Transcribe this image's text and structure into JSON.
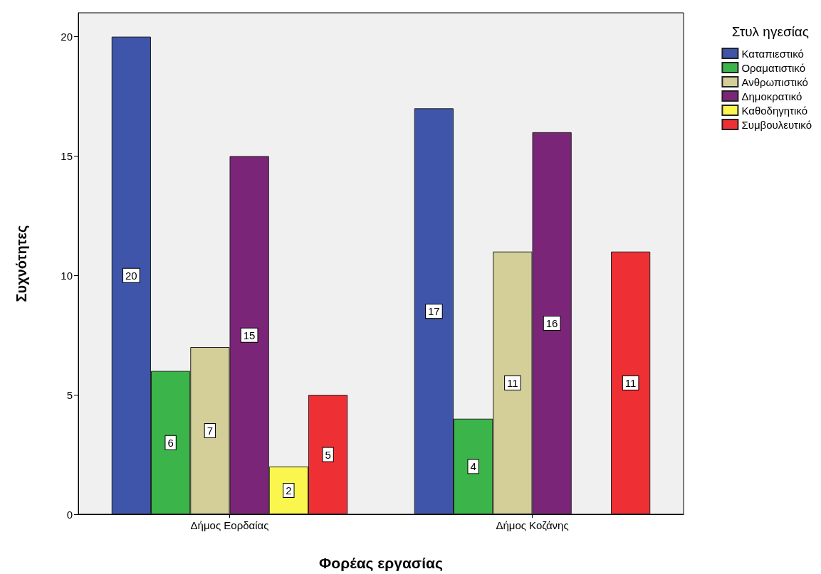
{
  "chart_data": {
    "type": "bar",
    "xlabel": "Φορέας εργασίας",
    "ylabel": "Συχνότητες",
    "legend_title": "Στυλ ηγεσίας",
    "categories": [
      "Δήμος Εορδαίας",
      "Δήμος Κοζάνης"
    ],
    "series": [
      {
        "name": "Καταπιεστικό",
        "color": "#3f55a9",
        "values": [
          20,
          17
        ]
      },
      {
        "name": "Οραματιστικό",
        "color": "#3bb54a",
        "values": [
          6,
          4
        ]
      },
      {
        "name": "Ανθρωπιστικό",
        "color": "#d4cf98",
        "values": [
          7,
          11
        ]
      },
      {
        "name": "Δημοκρατικό",
        "color": "#7b2578",
        "values": [
          15,
          16
        ]
      },
      {
        "name": "Καθοδηγητικό",
        "color": "#fbf64d",
        "values": [
          2,
          null
        ]
      },
      {
        "name": "Συμβουλευτικό",
        "color": "#ee3035",
        "values": [
          5,
          11
        ]
      }
    ],
    "ylim": [
      0,
      21
    ],
    "yticks": [
      0,
      5,
      10,
      15,
      20
    ],
    "grid": false,
    "legend": "top right",
    "data_labels": true
  }
}
